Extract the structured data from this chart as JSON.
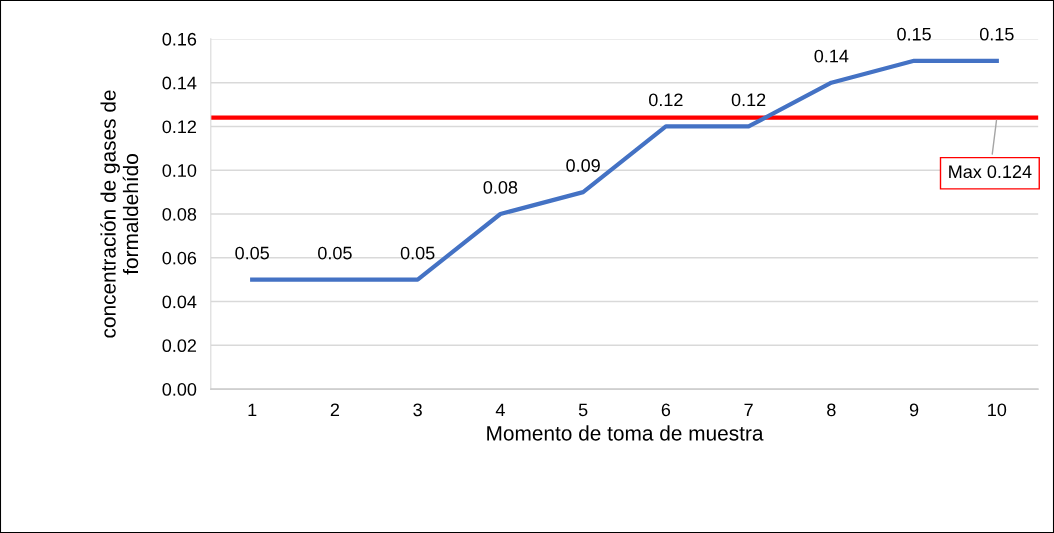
{
  "chart_data": {
    "type": "line",
    "xlabel": "Momento de toma de muestra",
    "ylabel": "concentración de gases de\nformaldehído",
    "categories": [
      "1",
      "2",
      "3",
      "4",
      "5",
      "6",
      "7",
      "8",
      "9",
      "10"
    ],
    "series": [
      {
        "color": "#4472c4",
        "values": [
          0.05,
          0.05,
          0.05,
          0.08,
          0.09,
          0.12,
          0.12,
          0.14,
          0.15,
          0.15
        ]
      }
    ],
    "data_labels": true,
    "ylim": [
      0,
      0.16
    ],
    "yticks": [
      {
        "value": 0,
        "label": "0.00"
      },
      {
        "value": 0.02,
        "label": "0.02"
      },
      {
        "value": 0.04,
        "label": "0.04"
      },
      {
        "value": 0.06,
        "label": "0.06"
      },
      {
        "value": 0.08,
        "label": "0.08"
      },
      {
        "value": 0.1,
        "label": "0.10"
      },
      {
        "value": 0.12,
        "label": "0.12"
      },
      {
        "value": 0.14,
        "label": "0.14"
      },
      {
        "value": 0.16,
        "label": "0.16"
      }
    ],
    "ref_lines": [
      {
        "axis": "y",
        "value": 0.124,
        "label": "Max 0.124",
        "color": "#ff0000"
      }
    ],
    "grid": "y",
    "marker": "none",
    "line_style": "solid"
  }
}
